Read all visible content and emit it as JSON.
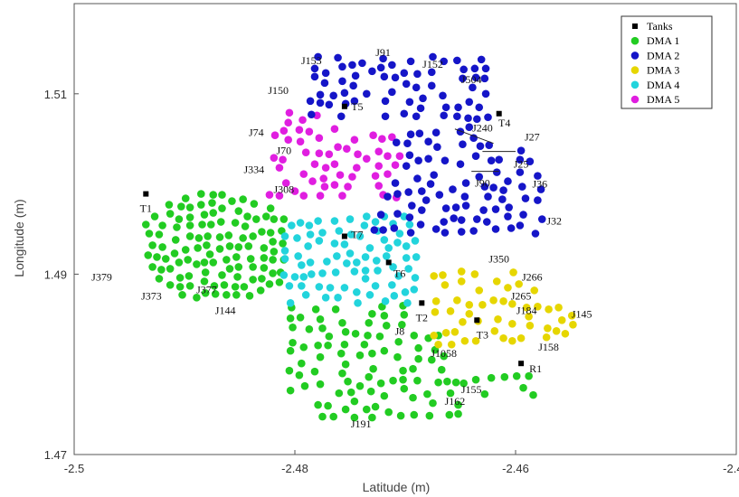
{
  "chart_data": {
    "type": "scatter",
    "title": "",
    "xlabel": "Latitude (m)",
    "ylabel": "Longitude (m)",
    "xlim": [
      -2.5,
      -2.44
    ],
    "ylim": [
      1.47,
      1.52
    ],
    "xticks": [
      -2.5,
      -2.48,
      -2.46,
      -2.44
    ],
    "xtick_labels": [
      "-2.5",
      "-2.48",
      "-2.46",
      "-2.44"
    ],
    "yticks": [
      1.47,
      1.49,
      1.51
    ],
    "ytick_labels": [
      "1.47",
      "1.49",
      "1.51"
    ],
    "grid": false,
    "legend_position": "top-right",
    "legend": [
      {
        "label": "Tanks",
        "color": "#000000",
        "marker": "square"
      },
      {
        "label": "DMA 1",
        "color": "#22cc22",
        "marker": "circle"
      },
      {
        "label": "DMA 2",
        "color": "#1515c8",
        "marker": "circle"
      },
      {
        "label": "DMA 3",
        "color": "#e6d600",
        "marker": "circle"
      },
      {
        "label": "DMA 4",
        "color": "#22d4dc",
        "marker": "circle"
      },
      {
        "label": "DMA 5",
        "color": "#e01ee0",
        "marker": "circle"
      }
    ],
    "series": [
      {
        "name": "Tanks",
        "color": "#000000",
        "marker": "square",
        "points": [
          {
            "x": -2.4935,
            "y": 1.4989,
            "label": "T1"
          },
          {
            "x": -2.4685,
            "y": 1.4868,
            "label": "T2"
          },
          {
            "x": -2.4635,
            "y": 1.4849,
            "label": "T3"
          },
          {
            "x": -2.4615,
            "y": 1.5078,
            "label": "T4"
          },
          {
            "x": -2.4755,
            "y": 1.5086,
            "label": "T5"
          },
          {
            "x": -2.4715,
            "y": 1.4913,
            "label": "T6"
          },
          {
            "x": -2.4755,
            "y": 1.4942,
            "label": "T7"
          },
          {
            "x": -2.4595,
            "y": 1.4801,
            "label": "R1"
          }
        ]
      },
      {
        "name": "DMA 1",
        "color": "#22cc22",
        "marker": "circle",
        "points": []
      },
      {
        "name": "DMA 2",
        "color": "#1515c8",
        "marker": "circle",
        "points": []
      },
      {
        "name": "DMA 3",
        "color": "#e6d600",
        "marker": "circle",
        "points": []
      },
      {
        "name": "DMA 4",
        "color": "#22d4dc",
        "marker": "circle",
        "points": []
      },
      {
        "name": "DMA 5",
        "color": "#e01ee0",
        "marker": "circle",
        "points": []
      }
    ],
    "annotations": [
      {
        "text": "J153",
        "x": -2.4785,
        "y": 1.5133
      },
      {
        "text": "J91",
        "x": -2.472,
        "y": 1.5142
      },
      {
        "text": "J152",
        "x": -2.4675,
        "y": 1.5129
      },
      {
        "text": "J504",
        "x": -2.464,
        "y": 1.5112
      },
      {
        "text": "J150",
        "x": -2.4815,
        "y": 1.51
      },
      {
        "text": "J74",
        "x": -2.4835,
        "y": 1.5053
      },
      {
        "text": "J70",
        "x": -2.481,
        "y": 1.5033
      },
      {
        "text": "J240",
        "x": -2.463,
        "y": 1.5058
      },
      {
        "text": "J27",
        "x": -2.4585,
        "y": 1.5048
      },
      {
        "text": "J25",
        "x": -2.4595,
        "y": 1.5018
      },
      {
        "text": "J36",
        "x": -2.4578,
        "y": 1.4996
      },
      {
        "text": "J90",
        "x": -2.463,
        "y": 1.4997
      },
      {
        "text": "J32",
        "x": -2.4565,
        "y": 1.4955
      },
      {
        "text": "J334",
        "x": -2.4837,
        "y": 1.5012
      },
      {
        "text": "J308",
        "x": -2.481,
        "y": 1.499
      },
      {
        "text": "J379",
        "x": -2.4975,
        "y": 1.4893
      },
      {
        "text": "J373",
        "x": -2.493,
        "y": 1.4872
      },
      {
        "text": "J377",
        "x": -2.488,
        "y": 1.4879
      },
      {
        "text": "J144",
        "x": -2.4863,
        "y": 1.4856
      },
      {
        "text": "J350",
        "x": -2.4615,
        "y": 1.4913
      },
      {
        "text": "J266",
        "x": -2.4585,
        "y": 1.4893
      },
      {
        "text": "J265",
        "x": -2.4595,
        "y": 1.4872
      },
      {
        "text": "J184",
        "x": -2.459,
        "y": 1.4856
      },
      {
        "text": "J145",
        "x": -2.454,
        "y": 1.4852
      },
      {
        "text": "J158",
        "x": -2.457,
        "y": 1.4815
      },
      {
        "text": "J8",
        "x": -2.4705,
        "y": 1.4833
      },
      {
        "text": "J1058",
        "x": -2.4665,
        "y": 1.4808
      },
      {
        "text": "J155",
        "x": -2.464,
        "y": 1.4768
      },
      {
        "text": "J162",
        "x": -2.4655,
        "y": 1.4755
      },
      {
        "text": "J191",
        "x": -2.474,
        "y": 1.473
      }
    ]
  }
}
